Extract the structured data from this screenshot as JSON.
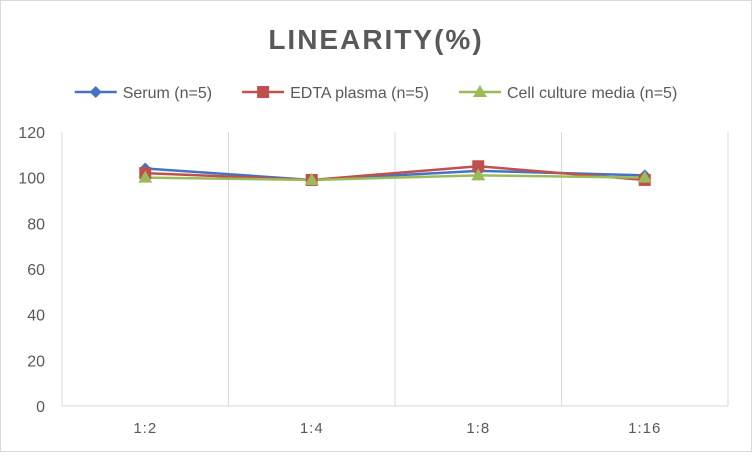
{
  "chart_data": {
    "type": "line",
    "title": "LINEARITY(%)",
    "xlabel": "",
    "ylabel": "",
    "categories": [
      "1:2",
      "1:4",
      "1:8",
      "1:16"
    ],
    "ylim": [
      0,
      120
    ],
    "yticks": [
      0,
      20,
      40,
      60,
      80,
      100,
      120
    ],
    "grid": "vertical",
    "legend_position": "top",
    "series": [
      {
        "name": "Serum (n=5)",
        "values": [
          104,
          99,
          103,
          101
        ],
        "color": "#4472c4",
        "marker": "diamond"
      },
      {
        "name": "EDTA plasma (n=5)",
        "values": [
          102,
          99,
          105,
          99
        ],
        "color": "#c0504d",
        "marker": "square"
      },
      {
        "name": "Cell culture media (n=5)",
        "values": [
          100,
          99,
          101,
          100
        ],
        "color": "#9bbb59",
        "marker": "triangle"
      }
    ]
  }
}
